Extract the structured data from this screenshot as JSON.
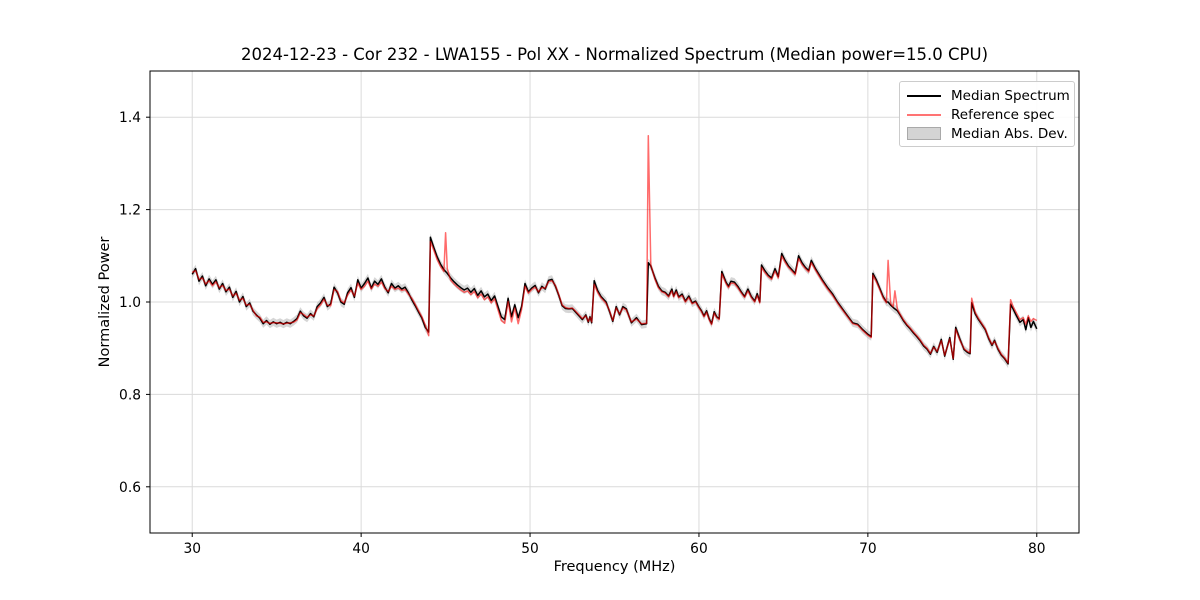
{
  "figure": {
    "background": "#ffffff",
    "spine_color": "#000000",
    "grid_color": "#dadada",
    "text_color": "#000000"
  },
  "chart_data": {
    "type": "line",
    "title": "2024-12-23 - Cor 232 - LWA155 - Pol XX - Normalized Spectrum (Median power=15.0 CPU)",
    "xlabel": "Frequency (MHz)",
    "ylabel": "Normalized Power",
    "xlim": [
      27.5,
      82.5
    ],
    "ylim": [
      0.5,
      1.5
    ],
    "xticks": [
      30,
      40,
      50,
      60,
      70,
      80
    ],
    "yticks": [
      0.6,
      0.8,
      1.0,
      1.2,
      1.4
    ],
    "grid": true,
    "legend_position": "upper right",
    "series": [
      {
        "name": "Median Spectrum",
        "kind": "line",
        "color": "#000000",
        "opacity": 1.0,
        "width": 1.5,
        "swatch": "#000000",
        "column": 1
      },
      {
        "name": "Reference spec",
        "kind": "line",
        "color": "#ff0000",
        "opacity": 0.58,
        "width": 1.5,
        "swatch": "#ff7373",
        "column": 2
      },
      {
        "name": "Median Abs. Dev.",
        "kind": "band",
        "color": "#bbbbbb",
        "opacity": 0.6,
        "swatch": "#d4d4d4",
        "half_width": 0.009,
        "around_column": 1
      }
    ],
    "points": [
      [
        30.0,
        1.06,
        1.064
      ],
      [
        30.2,
        1.072,
        1.068
      ],
      [
        30.4,
        1.045,
        1.049
      ],
      [
        30.6,
        1.056,
        1.052
      ],
      [
        30.8,
        1.035,
        1.039
      ],
      [
        31.0,
        1.05,
        1.046
      ],
      [
        31.2,
        1.038,
        1.035
      ],
      [
        31.4,
        1.048,
        1.044
      ],
      [
        31.6,
        1.028,
        1.031
      ],
      [
        31.8,
        1.04,
        1.036
      ],
      [
        32.0,
        1.022,
        1.025
      ],
      [
        32.2,
        1.032,
        1.028
      ],
      [
        32.4,
        1.01,
        1.013
      ],
      [
        32.6,
        1.023,
        1.019
      ],
      [
        32.8,
        1.0,
        1.004
      ],
      [
        33.0,
        1.012,
        1.008
      ],
      [
        33.2,
        0.99,
        0.993
      ],
      [
        33.4,
        0.998,
        0.995
      ],
      [
        33.6,
        0.98,
        0.982
      ],
      [
        33.8,
        0.972,
        0.97
      ],
      [
        34.0,
        0.965,
        0.967
      ],
      [
        34.2,
        0.953,
        0.956
      ],
      [
        34.4,
        0.96,
        0.957
      ],
      [
        34.6,
        0.952,
        0.954
      ],
      [
        34.8,
        0.957,
        0.955
      ],
      [
        35.0,
        0.953,
        0.955
      ],
      [
        35.2,
        0.956,
        0.954
      ],
      [
        35.4,
        0.952,
        0.953
      ],
      [
        35.6,
        0.956,
        0.954
      ],
      [
        35.8,
        0.953,
        0.955
      ],
      [
        36.0,
        0.958,
        0.956
      ],
      [
        36.2,
        0.964,
        0.961
      ],
      [
        36.4,
        0.98,
        0.977
      ],
      [
        36.6,
        0.97,
        0.973
      ],
      [
        36.8,
        0.965,
        0.967
      ],
      [
        37.0,
        0.975,
        0.972
      ],
      [
        37.2,
        0.968,
        0.97
      ],
      [
        37.4,
        0.99,
        0.986
      ],
      [
        37.6,
        0.998,
        0.994
      ],
      [
        37.8,
        1.01,
        1.006
      ],
      [
        38.0,
        0.99,
        0.993
      ],
      [
        38.2,
        0.996,
        0.992
      ],
      [
        38.4,
        1.032,
        1.027
      ],
      [
        38.6,
        1.02,
        1.023
      ],
      [
        38.8,
        1.0,
        1.003
      ],
      [
        39.0,
        0.995,
        0.998
      ],
      [
        39.2,
        1.02,
        1.015
      ],
      [
        39.4,
        1.031,
        1.026
      ],
      [
        39.6,
        1.01,
        1.013
      ],
      [
        39.8,
        1.048,
        1.041
      ],
      [
        40.0,
        1.03,
        1.027
      ],
      [
        40.2,
        1.04,
        1.034
      ],
      [
        40.4,
        1.052,
        1.045
      ],
      [
        40.6,
        1.03,
        1.028
      ],
      [
        40.8,
        1.045,
        1.039
      ],
      [
        41.0,
        1.038,
        1.034
      ],
      [
        41.2,
        1.05,
        1.043
      ],
      [
        41.4,
        1.032,
        1.029
      ],
      [
        41.6,
        1.02,
        1.023
      ],
      [
        41.8,
        1.04,
        1.034
      ],
      [
        42.0,
        1.03,
        1.027
      ],
      [
        42.2,
        1.035,
        1.03
      ],
      [
        42.4,
        1.028,
        1.025
      ],
      [
        42.6,
        1.032,
        1.027
      ],
      [
        42.8,
        1.02,
        1.017
      ],
      [
        43.0,
        1.005,
        1.008
      ],
      [
        43.2,
        0.992,
        0.995
      ],
      [
        43.4,
        0.978,
        0.981
      ],
      [
        43.6,
        0.965,
        0.968
      ],
      [
        43.8,
        0.945,
        0.95
      ],
      [
        44.0,
        0.935,
        0.927
      ],
      [
        44.1,
        1.14,
        1.131
      ],
      [
        44.3,
        1.118,
        1.112
      ],
      [
        44.5,
        1.098,
        1.092
      ],
      [
        44.7,
        1.082,
        1.077
      ],
      [
        44.9,
        1.07,
        1.066
      ],
      [
        45.0,
        1.066,
        1.15
      ],
      [
        45.1,
        1.062,
        1.072
      ],
      [
        45.3,
        1.052,
        1.047
      ],
      [
        45.5,
        1.044,
        1.039
      ],
      [
        45.7,
        1.037,
        1.032
      ],
      [
        45.9,
        1.031,
        1.026
      ],
      [
        46.1,
        1.026,
        1.021
      ],
      [
        46.3,
        1.03,
        1.024
      ],
      [
        46.5,
        1.021,
        1.016
      ],
      [
        46.7,
        1.029,
        1.023
      ],
      [
        46.9,
        1.014,
        1.009
      ],
      [
        47.1,
        1.024,
        1.017
      ],
      [
        47.3,
        1.011,
        1.005
      ],
      [
        47.5,
        1.017,
        1.011
      ],
      [
        47.7,
        1.003,
        0.998
      ],
      [
        47.9,
        1.013,
        1.007
      ],
      [
        48.1,
        0.99,
        0.983
      ],
      [
        48.3,
        0.968,
        0.96
      ],
      [
        48.5,
        0.962,
        0.954
      ],
      [
        48.7,
        1.008,
        1.001
      ],
      [
        48.9,
        0.968,
        0.957
      ],
      [
        49.1,
        0.994,
        0.987
      ],
      [
        49.3,
        0.966,
        0.953
      ],
      [
        49.5,
        0.99,
        0.984
      ],
      [
        49.7,
        1.04,
        1.034
      ],
      [
        49.9,
        1.022,
        1.019
      ],
      [
        50.1,
        1.03,
        1.027
      ],
      [
        50.3,
        1.036,
        1.032
      ],
      [
        50.5,
        1.02,
        1.022
      ],
      [
        50.7,
        1.034,
        1.031
      ],
      [
        50.9,
        1.028,
        1.03
      ],
      [
        51.1,
        1.047,
        1.044
      ],
      [
        51.3,
        1.049,
        1.046
      ],
      [
        51.5,
        1.034,
        1.036
      ],
      [
        51.7,
        1.014,
        1.016
      ],
      [
        51.9,
        0.992,
        0.994
      ],
      [
        52.1,
        0.986,
        0.988
      ],
      [
        52.3,
        0.985,
        0.986
      ],
      [
        52.5,
        0.986,
        0.987
      ],
      [
        52.7,
        0.978,
        0.98
      ],
      [
        52.9,
        0.97,
        0.972
      ],
      [
        53.1,
        0.962,
        0.964
      ],
      [
        53.3,
        0.972,
        0.97
      ],
      [
        53.45,
        0.956,
        0.958
      ],
      [
        53.55,
        0.968,
        0.966
      ],
      [
        53.65,
        0.955,
        0.957
      ],
      [
        53.8,
        1.046,
        1.038
      ],
      [
        54.0,
        1.025,
        1.021
      ],
      [
        54.2,
        1.012,
        1.009
      ],
      [
        54.5,
        1.0,
        0.997
      ],
      [
        54.7,
        0.98,
        0.982
      ],
      [
        54.9,
        0.958,
        0.96
      ],
      [
        55.1,
        0.99,
        0.987
      ],
      [
        55.3,
        0.972,
        0.974
      ],
      [
        55.5,
        0.99,
        0.987
      ],
      [
        55.7,
        0.985,
        0.983
      ],
      [
        56.0,
        0.955,
        0.957
      ],
      [
        56.3,
        0.966,
        0.963
      ],
      [
        56.6,
        0.951,
        0.953
      ],
      [
        56.9,
        0.953,
        0.954
      ],
      [
        57.0,
        1.085,
        1.36
      ],
      [
        57.15,
        1.078,
        1.08
      ],
      [
        57.4,
        1.052,
        1.049
      ],
      [
        57.6,
        1.034,
        1.031
      ],
      [
        57.8,
        1.024,
        1.022
      ],
      [
        58.0,
        1.021,
        1.019
      ],
      [
        58.2,
        1.013,
        1.011
      ],
      [
        58.4,
        1.028,
        1.024
      ],
      [
        58.5,
        1.013,
        1.011
      ],
      [
        58.65,
        1.026,
        1.022
      ],
      [
        58.8,
        1.011,
        1.009
      ],
      [
        59.0,
        1.017,
        1.014
      ],
      [
        59.2,
        1.002,
        1.0
      ],
      [
        59.4,
        1.013,
        1.01
      ],
      [
        59.6,
        0.998,
        0.996
      ],
      [
        59.8,
        1.002,
        1.0
      ],
      [
        60.0,
        0.989,
        0.987
      ],
      [
        60.15,
        0.981,
        0.979
      ],
      [
        60.3,
        0.97,
        0.968
      ],
      [
        60.45,
        0.981,
        0.978
      ],
      [
        60.6,
        0.964,
        0.962
      ],
      [
        60.75,
        0.953,
        0.951
      ],
      [
        60.9,
        0.979,
        0.976
      ],
      [
        61.05,
        0.968,
        0.966
      ],
      [
        61.2,
        0.964,
        0.962
      ],
      [
        61.35,
        1.066,
        1.061
      ],
      [
        61.6,
        1.043,
        1.04
      ],
      [
        61.75,
        1.034,
        1.031
      ],
      [
        61.9,
        1.045,
        1.041
      ],
      [
        62.1,
        1.043,
        1.04
      ],
      [
        62.3,
        1.034,
        1.031
      ],
      [
        62.5,
        1.022,
        1.02
      ],
      [
        62.7,
        1.012,
        1.01
      ],
      [
        62.9,
        1.028,
        1.024
      ],
      [
        63.1,
        1.012,
        1.01
      ],
      [
        63.3,
        1.002,
        1.0
      ],
      [
        63.45,
        1.018,
        1.014
      ],
      [
        63.6,
        1.0,
        0.998
      ],
      [
        63.7,
        1.08,
        1.075
      ],
      [
        63.9,
        1.068,
        1.064
      ],
      [
        64.1,
        1.058,
        1.055
      ],
      [
        64.3,
        1.052,
        1.049
      ],
      [
        64.5,
        1.072,
        1.067
      ],
      [
        64.7,
        1.055,
        1.052
      ],
      [
        64.9,
        1.105,
        1.099
      ],
      [
        65.1,
        1.09,
        1.086
      ],
      [
        65.3,
        1.078,
        1.075
      ],
      [
        65.5,
        1.07,
        1.067
      ],
      [
        65.7,
        1.062,
        1.059
      ],
      [
        65.9,
        1.1,
        1.094
      ],
      [
        66.1,
        1.085,
        1.081
      ],
      [
        66.3,
        1.075,
        1.072
      ],
      [
        66.5,
        1.068,
        1.065
      ],
      [
        66.65,
        1.09,
        1.085
      ],
      [
        66.9,
        1.072,
        1.069
      ],
      [
        67.1,
        1.06,
        1.057
      ],
      [
        67.3,
        1.048,
        1.045
      ],
      [
        67.6,
        1.032,
        1.029
      ],
      [
        67.9,
        1.018,
        1.015
      ],
      [
        68.2,
        1.0,
        0.998
      ],
      [
        68.5,
        0.985,
        0.983
      ],
      [
        68.8,
        0.97,
        0.968
      ],
      [
        69.1,
        0.955,
        0.953
      ],
      [
        69.4,
        0.952,
        0.95
      ],
      [
        69.7,
        0.94,
        0.938
      ],
      [
        70.0,
        0.93,
        0.928
      ],
      [
        70.2,
        0.925,
        0.923
      ],
      [
        70.3,
        1.062,
        1.058
      ],
      [
        70.5,
        1.048,
        1.044
      ],
      [
        70.7,
        1.03,
        1.027
      ],
      [
        70.9,
        1.012,
        1.009
      ],
      [
        71.1,
        1.0,
        0.998
      ],
      [
        71.2,
        1.0,
        1.09
      ],
      [
        71.35,
        0.993,
        0.996
      ],
      [
        71.5,
        0.988,
        0.99
      ],
      [
        71.6,
        0.985,
        1.024
      ],
      [
        71.75,
        0.981,
        0.984
      ],
      [
        71.9,
        0.972,
        0.974
      ],
      [
        72.1,
        0.96,
        0.962
      ],
      [
        72.3,
        0.95,
        0.952
      ],
      [
        72.5,
        0.942,
        0.944
      ],
      [
        72.7,
        0.933,
        0.935
      ],
      [
        72.9,
        0.925,
        0.927
      ],
      [
        73.1,
        0.916,
        0.918
      ],
      [
        73.3,
        0.905,
        0.907
      ],
      [
        73.5,
        0.898,
        0.9
      ],
      [
        73.7,
        0.887,
        0.889
      ],
      [
        73.9,
        0.904,
        0.902
      ],
      [
        74.1,
        0.891,
        0.893
      ],
      [
        74.35,
        0.919,
        0.916
      ],
      [
        74.55,
        0.883,
        0.885
      ],
      [
        74.85,
        0.923,
        0.92
      ],
      [
        75.05,
        0.876,
        0.878
      ],
      [
        75.2,
        0.945,
        0.941
      ],
      [
        75.45,
        0.92,
        0.917
      ],
      [
        75.7,
        0.897,
        0.899
      ],
      [
        75.9,
        0.891,
        0.893
      ],
      [
        76.05,
        0.888,
        0.89
      ],
      [
        76.15,
        0.998,
        1.008
      ],
      [
        76.35,
        0.975,
        0.978
      ],
      [
        76.55,
        0.962,
        0.964
      ],
      [
        76.75,
        0.951,
        0.953
      ],
      [
        76.95,
        0.94,
        0.942
      ],
      [
        77.15,
        0.921,
        0.923
      ],
      [
        77.35,
        0.906,
        0.908
      ],
      [
        77.5,
        0.917,
        0.915
      ],
      [
        77.7,
        0.898,
        0.9
      ],
      [
        77.9,
        0.885,
        0.887
      ],
      [
        78.1,
        0.877,
        0.879
      ],
      [
        78.3,
        0.866,
        0.868
      ],
      [
        78.45,
        0.995,
        1.005
      ],
      [
        78.6,
        0.985,
        0.99
      ],
      [
        78.8,
        0.97,
        0.976
      ],
      [
        79.0,
        0.956,
        0.962
      ],
      [
        79.2,
        0.962,
        0.966
      ],
      [
        79.35,
        0.94,
        0.952
      ],
      [
        79.5,
        0.966,
        0.97
      ],
      [
        79.65,
        0.945,
        0.958
      ],
      [
        79.8,
        0.958,
        0.964
      ],
      [
        80.0,
        0.942,
        0.96
      ]
    ]
  }
}
